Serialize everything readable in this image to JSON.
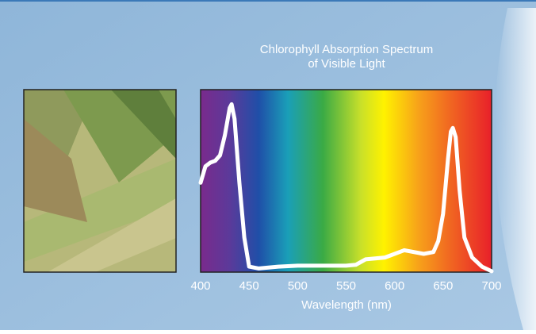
{
  "chart_data": {
    "type": "line",
    "title": "Chlorophyll Absorption Spectrum",
    "subtitle": "of Visible Light",
    "x_label": "Wavelength (nm)",
    "x": [
      400,
      405,
      410,
      415,
      420,
      425,
      430,
      432,
      435,
      440,
      445,
      450,
      460,
      480,
      500,
      550,
      560,
      570,
      590,
      610,
      630,
      640,
      645,
      650,
      655,
      658,
      660,
      663,
      667,
      672,
      680,
      690,
      700
    ],
    "values": [
      0.49,
      0.58,
      0.6,
      0.61,
      0.64,
      0.75,
      0.9,
      0.92,
      0.84,
      0.49,
      0.19,
      0.03,
      0.02,
      0.03,
      0.035,
      0.035,
      0.04,
      0.07,
      0.08,
      0.12,
      0.1,
      0.11,
      0.17,
      0.32,
      0.62,
      0.77,
      0.79,
      0.74,
      0.45,
      0.19,
      0.08,
      0.03,
      0.005
    ],
    "color": "#ffffff",
    "xlim": [
      400,
      700
    ],
    "xticks": [
      400,
      450,
      500,
      550,
      600,
      650,
      700
    ],
    "ylim": [
      0,
      1
    ]
  }
}
